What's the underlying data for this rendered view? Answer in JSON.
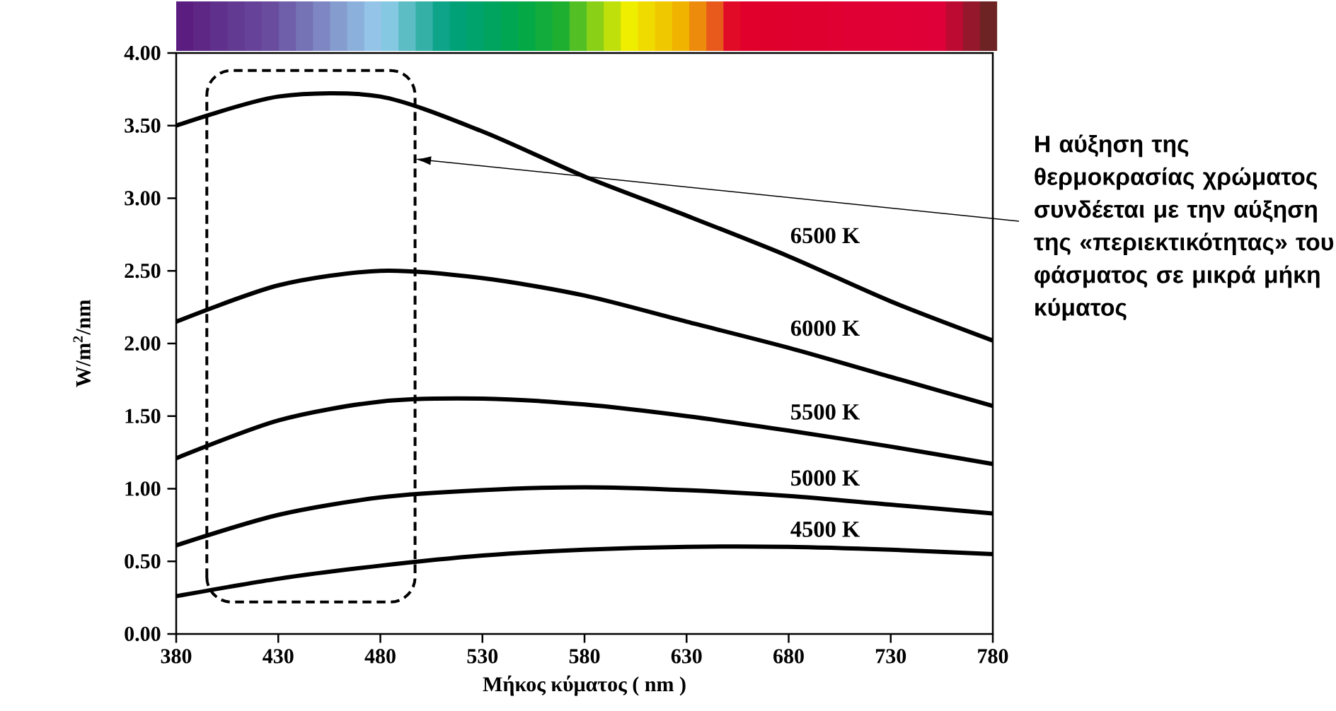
{
  "chart_data": {
    "type": "line",
    "xlabel": "Μήκος κύματος ( nm )",
    "ylabel": "W/m$^{2}$/nm",
    "x": [
      380,
      430,
      480,
      530,
      580,
      630,
      680,
      730,
      780
    ],
    "series": [
      {
        "name": "6500 K",
        "color": "#000000",
        "values": [
          3.5,
          3.7,
          3.7,
          3.46,
          3.15,
          2.88,
          2.6,
          2.29,
          2.02
        ]
      },
      {
        "name": "6000 K",
        "color": "#000000",
        "values": [
          2.15,
          2.4,
          2.5,
          2.45,
          2.33,
          2.15,
          1.97,
          1.77,
          1.57
        ]
      },
      {
        "name": "5500 K",
        "color": "#000000",
        "values": [
          1.21,
          1.47,
          1.6,
          1.62,
          1.58,
          1.5,
          1.4,
          1.29,
          1.17
        ]
      },
      {
        "name": "5000 K",
        "color": "#000000",
        "values": [
          0.61,
          0.82,
          0.94,
          0.99,
          1.01,
          0.99,
          0.95,
          0.89,
          0.83
        ]
      },
      {
        "name": "4500 K",
        "color": "#000000",
        "values": [
          0.26,
          0.38,
          0.47,
          0.54,
          0.58,
          0.6,
          0.6,
          0.58,
          0.55
        ]
      }
    ],
    "xlim": [
      380,
      780
    ],
    "xticks": [
      380,
      430,
      480,
      530,
      580,
      630,
      680,
      730,
      780
    ],
    "ylim": [
      0,
      4
    ],
    "yticks": [
      {
        "value": 0,
        "label": "0.00"
      },
      {
        "value": 0.5,
        "label": "0.50"
      },
      {
        "value": 1,
        "label": "1.00"
      },
      {
        "value": 1.5,
        "label": "1.50"
      },
      {
        "value": 2,
        "label": "2.00"
      },
      {
        "value": 2.5,
        "label": "2.50"
      },
      {
        "value": 3,
        "label": "3.00"
      },
      {
        "value": 3.5,
        "label": "3.50"
      },
      {
        "value": 4,
        "label": "4.00"
      }
    ],
    "line_style": "solid",
    "grid": false,
    "legend": false,
    "annotations": [
      "Η αύξηση της θερμοκρασίας χρώματος συνδέεται με την αύξηση της «περιεκτικότητας» του φάσματος σε μικρά μήκη κύματος"
    ]
  }
}
